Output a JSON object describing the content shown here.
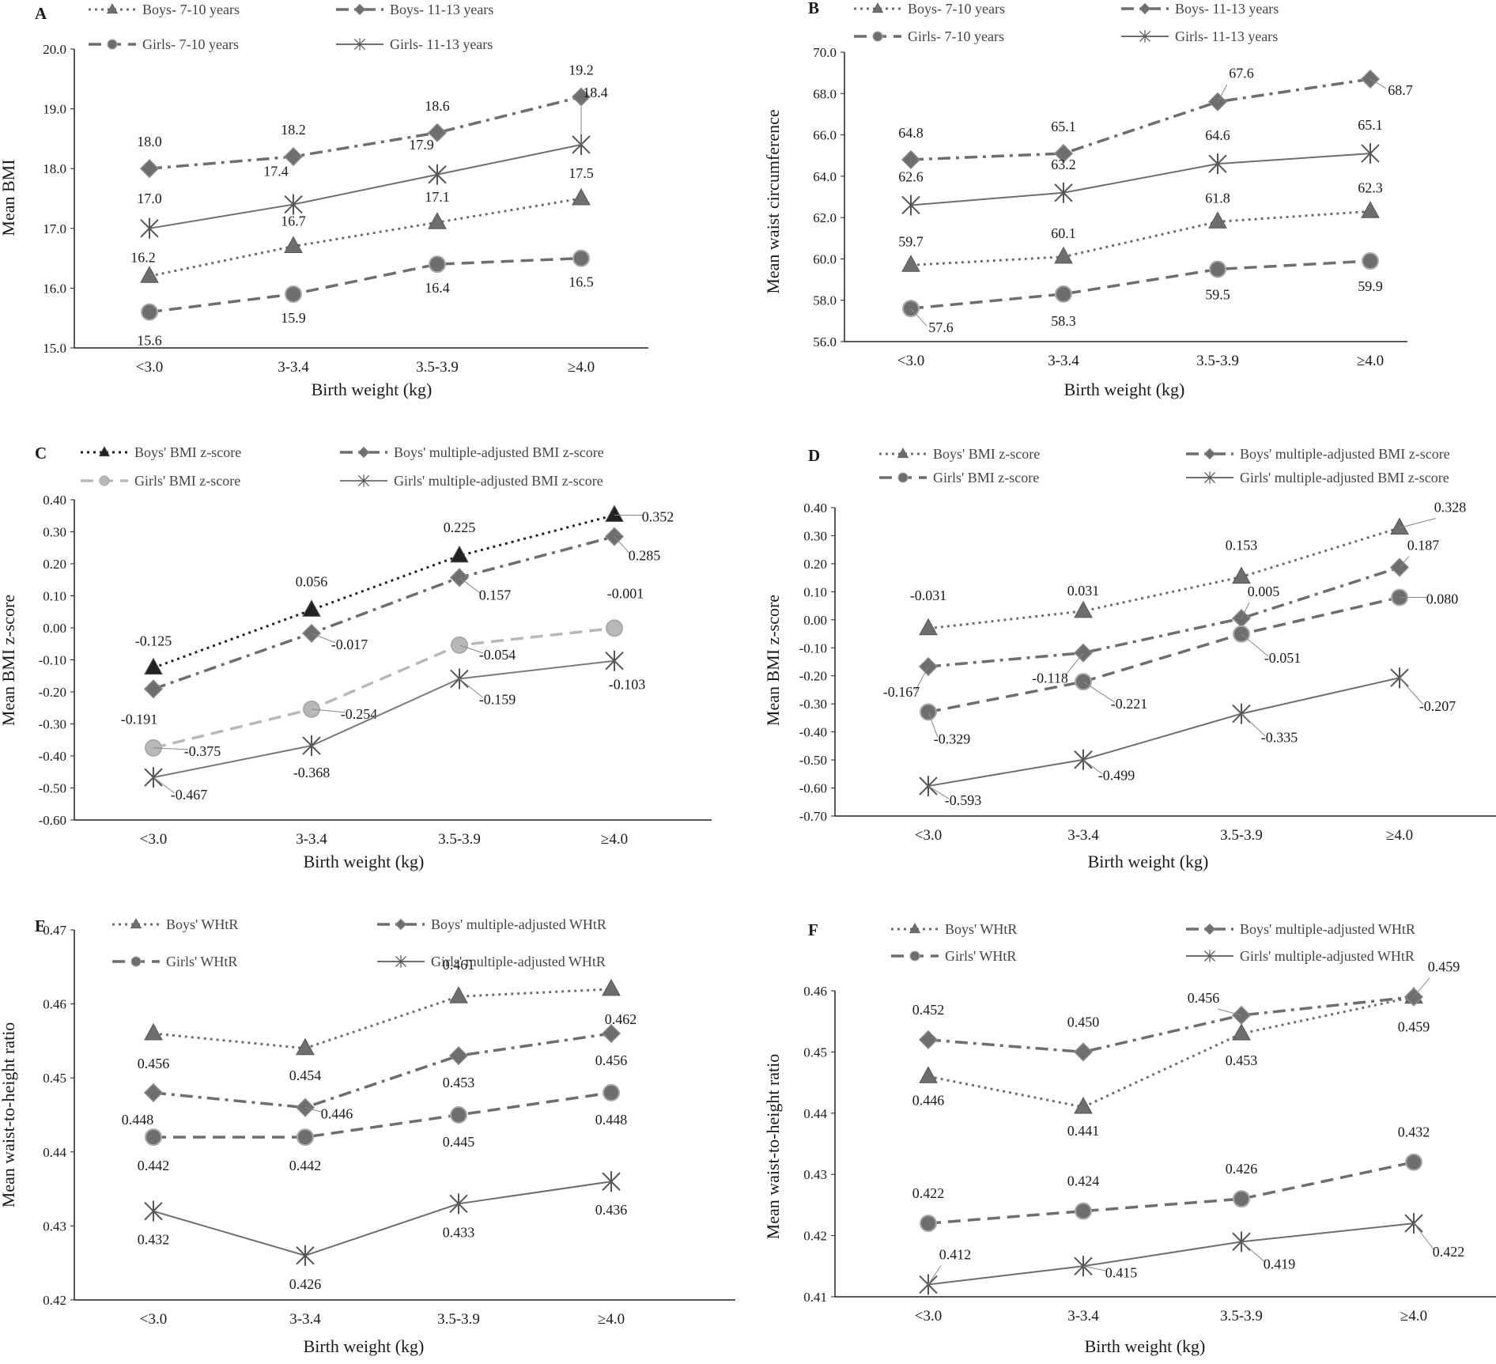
{
  "figure": {
    "panels": [
      "A",
      "B",
      "C",
      "D",
      "E",
      "F"
    ]
  },
  "chart_data": [
    {
      "panel": "A",
      "type": "line",
      "title": "",
      "xlabel": "Birth weight (kg)",
      "ylabel": "Mean BMI",
      "categories": [
        "<3.0",
        "3-3.4",
        "3.5-3.9",
        "≥4.0"
      ],
      "ylim": [
        15.0,
        20.0
      ],
      "yticks": [
        "15.0",
        "16.0",
        "17.0",
        "18.0",
        "19.0",
        "20.0"
      ],
      "series": [
        {
          "name": "Boys- 7-10 years",
          "values": [
            16.2,
            16.7,
            17.1,
            17.5
          ],
          "labels": [
            "16.2",
            "16.7",
            "17.1",
            "17.5"
          ]
        },
        {
          "name": "Boys- 11-13 years",
          "values": [
            18.0,
            18.2,
            18.6,
            19.2
          ],
          "labels": [
            "18.0",
            "18.2",
            "18.6",
            "19.2"
          ]
        },
        {
          "name": "Girls- 7-10 years",
          "values": [
            15.6,
            15.9,
            16.4,
            16.5
          ],
          "labels": [
            "15.6",
            "15.9",
            "16.4",
            "16.5"
          ]
        },
        {
          "name": "Girls- 11-13 years",
          "values": [
            17.0,
            17.4,
            17.9,
            18.4
          ],
          "labels": [
            "17.0",
            "17.4",
            "17.9",
            "18.4"
          ]
        }
      ]
    },
    {
      "panel": "B",
      "type": "line",
      "title": "",
      "xlabel": "Birth weight (kg)",
      "ylabel": "Mean waist circumference",
      "categories": [
        "<3.0",
        "3-3.4",
        "3.5-3.9",
        "≥4.0"
      ],
      "ylim": [
        56.0,
        70.0
      ],
      "yticks": [
        "56.0",
        "58.0",
        "60.0",
        "62.0",
        "64.0",
        "66.0",
        "68.0",
        "70.0"
      ],
      "series": [
        {
          "name": "Boys- 7-10 years",
          "values": [
            59.7,
            60.1,
            61.8,
            62.3
          ],
          "labels": [
            "59.7",
            "60.1",
            "61.8",
            "62.3"
          ]
        },
        {
          "name": "Boys- 11-13 years",
          "values": [
            64.8,
            65.1,
            67.6,
            68.7
          ],
          "labels": [
            "64.8",
            "65.1",
            "67.6",
            "68.7"
          ]
        },
        {
          "name": "Girls- 7-10 years",
          "values": [
            57.6,
            58.3,
            59.5,
            59.9
          ],
          "labels": [
            "57.6",
            "58.3",
            "59.5",
            "59.9"
          ]
        },
        {
          "name": "Girls- 11-13 years",
          "values": [
            62.6,
            63.2,
            64.6,
            65.1
          ],
          "labels": [
            "62.6",
            "63.2",
            "64.6",
            "65.1"
          ]
        }
      ]
    },
    {
      "panel": "C",
      "type": "line",
      "title": "",
      "xlabel": "Birth weight (kg)",
      "ylabel": "Mean BMI z-score",
      "categories": [
        "<3.0",
        "3-3.4",
        "3.5-3.9",
        "≥4.0"
      ],
      "ylim": [
        -0.6,
        0.4
      ],
      "yticks": [
        "-0.60",
        "-0.50",
        "-0.40",
        "-0.30",
        "-0.20",
        "-0.10",
        "0.00",
        "0.10",
        "0.20",
        "0.30",
        "0.40"
      ],
      "series": [
        {
          "name": "Boys' BMI z-score",
          "values": [
            -0.125,
            0.056,
            0.225,
            0.352
          ],
          "labels": [
            "-0.125",
            "0.056",
            "0.225",
            "0.352"
          ]
        },
        {
          "name": "Boys' multiple-adjusted BMI z-score",
          "values": [
            -0.191,
            -0.017,
            0.157,
            0.285
          ],
          "labels": [
            "-0.191",
            "-0.017",
            "0.157",
            "0.285"
          ]
        },
        {
          "name": "Girls' BMI z-score",
          "values": [
            -0.375,
            -0.254,
            -0.054,
            -0.001
          ],
          "labels": [
            "-0.375",
            "-0.254",
            "-0.054",
            "-0.001"
          ]
        },
        {
          "name": "Girls' multiple-adjusted BMI z-score",
          "values": [
            -0.467,
            -0.368,
            -0.159,
            -0.103
          ],
          "labels": [
            "-0.467",
            "-0.368",
            "-0.159",
            "-0.103"
          ]
        }
      ]
    },
    {
      "panel": "D",
      "type": "line",
      "title": "",
      "xlabel": "Birth weight (kg)",
      "ylabel": "Mean BMI z-score",
      "categories": [
        "<3.0",
        "3-3.4",
        "3.5-3.9",
        "≥4.0"
      ],
      "ylim": [
        -0.7,
        0.4
      ],
      "yticks": [
        "-0.70",
        "-0.60",
        "-0.50",
        "-0.40",
        "-0.30",
        "-0.20",
        "-0.10",
        "0.00",
        "0.10",
        "0.20",
        "0.30",
        "0.40"
      ],
      "series": [
        {
          "name": "Boys' BMI z-score",
          "values": [
            -0.031,
            0.031,
            0.153,
            0.328
          ],
          "labels": [
            "-0.031",
            "0.031",
            "0.153",
            "0.328"
          ]
        },
        {
          "name": "Boys' multiple-adjusted BMI z-score",
          "values": [
            -0.167,
            -0.118,
            0.005,
            0.187
          ],
          "labels": [
            "-0.167",
            "-0.118",
            "0.005",
            "0.187"
          ]
        },
        {
          "name": "Girls' BMI z-score",
          "values": [
            -0.329,
            -0.221,
            -0.051,
            0.08
          ],
          "labels": [
            "-0.329",
            "-0.221",
            "-0.051",
            "0.080"
          ]
        },
        {
          "name": "Girls' multiple-adjusted BMI z-score",
          "values": [
            -0.593,
            -0.499,
            -0.335,
            -0.207
          ],
          "labels": [
            "-0.593",
            "-0.499",
            "-0.335",
            "-0.207"
          ]
        }
      ]
    },
    {
      "panel": "E",
      "type": "line",
      "title": "",
      "xlabel": "Birth weight (kg)",
      "ylabel": "Mean waist-to-height ratio",
      "categories": [
        "<3.0",
        "3-3.4",
        "3.5-3.9",
        "≥4.0"
      ],
      "ylim": [
        0.42,
        0.47
      ],
      "yticks": [
        "0.42",
        "0.43",
        "0.44",
        "0.45",
        "0.46",
        "0.47"
      ],
      "series": [
        {
          "name": "Boys' WHtR",
          "values": [
            0.456,
            0.454,
            0.461,
            0.462
          ],
          "labels": [
            "0.456",
            "0.454",
            "0.461",
            "0.462"
          ]
        },
        {
          "name": "Boys' multiple-adjusted WHtR",
          "values": [
            0.448,
            0.446,
            0.453,
            0.456
          ],
          "labels": [
            "0.448",
            "0.446",
            "0.453",
            "0.456"
          ]
        },
        {
          "name": "Girls' WHtR",
          "values": [
            0.442,
            0.442,
            0.445,
            0.448
          ],
          "labels": [
            "0.442",
            "0.442",
            "0.445",
            "0.448"
          ]
        },
        {
          "name": "Girls' multiple-adjusted WHtR",
          "values": [
            0.432,
            0.426,
            0.433,
            0.436
          ],
          "labels": [
            "0.432",
            "0.426",
            "0.433",
            "0.436"
          ]
        }
      ]
    },
    {
      "panel": "F",
      "type": "line",
      "title": "",
      "xlabel": "Birth weight (kg)",
      "ylabel": "Mean waist-to-height ratio",
      "categories": [
        "<3.0",
        "3-3.4",
        "3.5-3.9",
        "≥4.0"
      ],
      "ylim": [
        0.41,
        0.46
      ],
      "yticks": [
        "0.41",
        "0.42",
        "0.43",
        "0.44",
        "0.45",
        "0.46"
      ],
      "series": [
        {
          "name": "Boys' WHtR",
          "values": [
            0.446,
            0.441,
            0.453,
            0.459
          ],
          "labels": [
            "0.446",
            "0.441",
            "0.453",
            "0.459"
          ]
        },
        {
          "name": "Boys' multiple-adjusted WHtR",
          "values": [
            0.452,
            0.45,
            0.456,
            0.459
          ],
          "labels": [
            "0.452",
            "0.450",
            "0.456",
            "0.459"
          ]
        },
        {
          "name": "Girls' WHtR",
          "values": [
            0.422,
            0.424,
            0.426,
            0.432
          ],
          "labels": [
            "0.422",
            "0.424",
            "0.426",
            "0.432"
          ]
        },
        {
          "name": "Girls' multiple-adjusted WHtR",
          "values": [
            0.412,
            0.415,
            0.419,
            0.422
          ],
          "labels": [
            "0.412",
            "0.415",
            "0.419",
            "0.422"
          ]
        }
      ]
    }
  ]
}
